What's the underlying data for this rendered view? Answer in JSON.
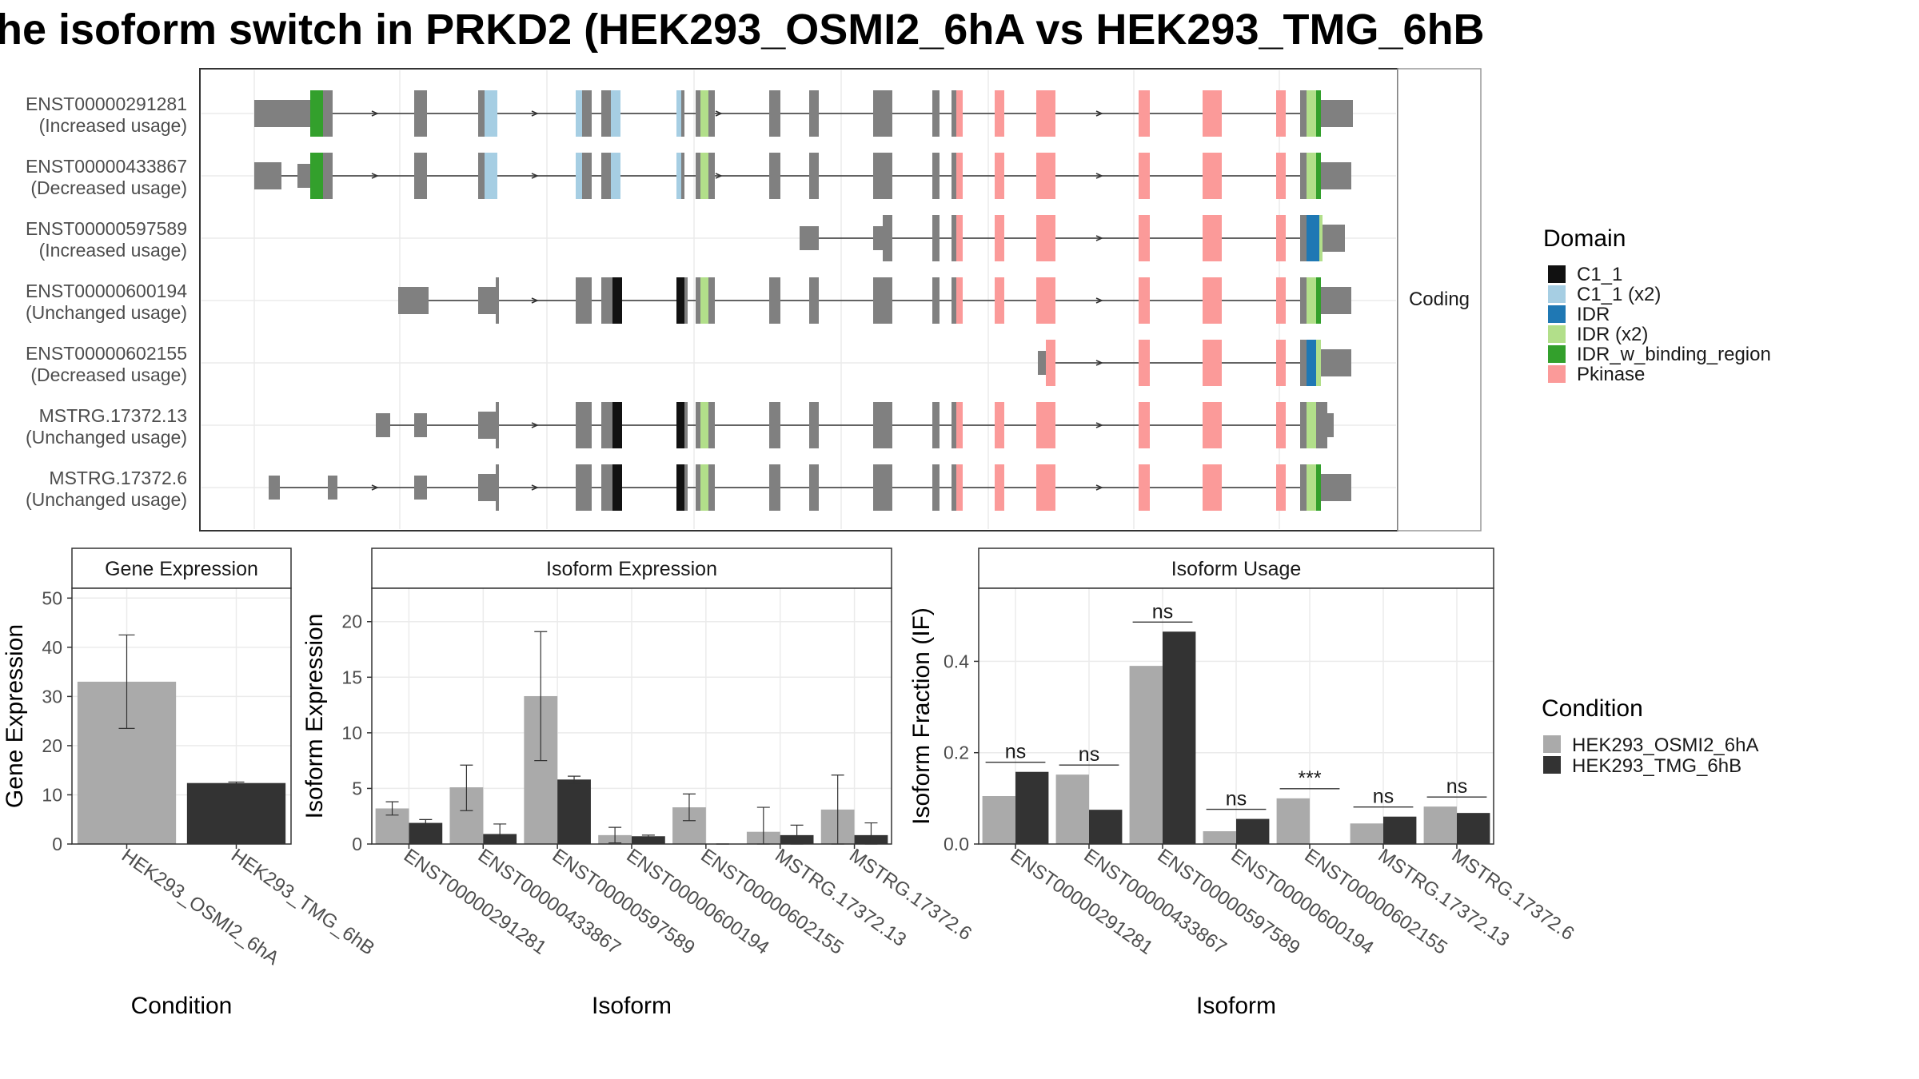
{
  "title": "he isoform switch in PRKD2 (HEK293_OSMI2_6hA vs HEK293_TMG_6hB",
  "colors": {
    "gray_exon": "#808080",
    "C1_1": "#111111",
    "C1_1 (x2)": "#a6cee3",
    "IDR": "#1f78b4",
    "IDR (x2)": "#b2df8a",
    "IDR_w_binding_region": "#33a02c",
    "Pkinase": "#fb9a99",
    "cond1": "#aaaaaa",
    "cond2": "#333333",
    "grid": "#ebebeb",
    "strip_bg": "#ffffff"
  },
  "structure_panel": {
    "facet_label": "Coding",
    "legend_title": "Domain",
    "legend_items": [
      "C1_1",
      "C1_1 (x2)",
      "IDR",
      "IDR (x2)",
      "IDR_w_binding_region",
      "Pkinase"
    ],
    "isoforms": [
      {
        "name": "ENST00000291281",
        "usage": "(Increased usage)"
      },
      {
        "name": "ENST00000433867",
        "usage": "(Decreased usage)"
      },
      {
        "name": "ENST00000597589",
        "usage": "(Increased usage)"
      },
      {
        "name": "ENST00000600194",
        "usage": "(Unchanged usage)"
      },
      {
        "name": "ENST00000602155",
        "usage": "(Decreased usage)"
      },
      {
        "name": "MSTRG.17372.13",
        "usage": "(Unchanged usage)"
      },
      {
        "name": "MSTRG.17372.6",
        "usage": "(Unchanged usage)"
      }
    ]
  },
  "chart_data": [
    {
      "type": "bar",
      "title": "Gene Expression",
      "xlabel": "Condition",
      "ylabel": "Gene Expression",
      "categories": [
        "HEK293_OSMI2_6hA",
        "HEK293_TMG_6hB"
      ],
      "values": [
        33.0,
        12.4
      ],
      "errors": [
        [
          23.5,
          42.5
        ],
        [
          12.2,
          12.6
        ]
      ],
      "ylim": [
        0,
        52
      ],
      "yticks": [
        0,
        10,
        20,
        30,
        40,
        50
      ]
    },
    {
      "type": "bar",
      "title": "Isoform Expression",
      "xlabel": "Isoform",
      "ylabel": "Isoform Expression",
      "categories": [
        "ENST00000291281",
        "ENST00000433867",
        "ENST00000597589",
        "ENST00000600194",
        "ENST00000602155",
        "MSTRG.17372.13",
        "MSTRG.17372.6"
      ],
      "series": [
        {
          "name": "HEK293_OSMI2_6hA",
          "values": [
            3.2,
            5.1,
            13.3,
            0.8,
            3.3,
            1.1,
            3.1
          ],
          "errors": [
            [
              2.6,
              3.8
            ],
            [
              3.0,
              7.1
            ],
            [
              7.5,
              19.1
            ],
            [
              0.1,
              1.5
            ],
            [
              2.1,
              4.5
            ],
            [
              0.0,
              3.3
            ],
            [
              0.0,
              6.2
            ]
          ]
        },
        {
          "name": "HEK293_TMG_6hB",
          "values": [
            1.9,
            0.9,
            5.8,
            0.7,
            0.0,
            0.8,
            0.8
          ],
          "errors": [
            [
              1.6,
              2.2
            ],
            [
              0.1,
              1.8
            ],
            [
              5.4,
              6.1
            ],
            [
              0.6,
              0.8
            ],
            [
              0.0,
              0.0
            ],
            [
              0.0,
              1.7
            ],
            [
              0.0,
              1.9
            ]
          ]
        }
      ],
      "ylim": [
        0,
        23
      ],
      "yticks": [
        0,
        5,
        10,
        15,
        20
      ]
    },
    {
      "type": "bar",
      "title": "Isoform Usage",
      "xlabel": "Isoform",
      "ylabel": "Isoform Fraction (IF)",
      "categories": [
        "ENST00000291281",
        "ENST00000433867",
        "ENST00000597589",
        "ENST00000600194",
        "ENST00000602155",
        "MSTRG.17372.13",
        "MSTRG.17372.6"
      ],
      "series": [
        {
          "name": "HEK293_OSMI2_6hA",
          "values": [
            0.105,
            0.152,
            0.39,
            0.028,
            0.1,
            0.045,
            0.082
          ]
        },
        {
          "name": "HEK293_TMG_6hB",
          "values": [
            0.158,
            0.075,
            0.465,
            0.055,
            0.0,
            0.06,
            0.068
          ]
        }
      ],
      "significance": [
        "ns",
        "ns",
        "ns",
        "ns",
        "***",
        "ns",
        "ns"
      ],
      "ylim": [
        0,
        0.56
      ],
      "yticks": [
        0.0,
        0.2,
        0.4
      ],
      "ytick_labels": [
        "0.0",
        "0.2",
        "0.4"
      ]
    }
  ],
  "condition_legend": {
    "title": "Condition",
    "items": [
      "HEK293_OSMI2_6hA",
      "HEK293_TMG_6hB"
    ]
  }
}
